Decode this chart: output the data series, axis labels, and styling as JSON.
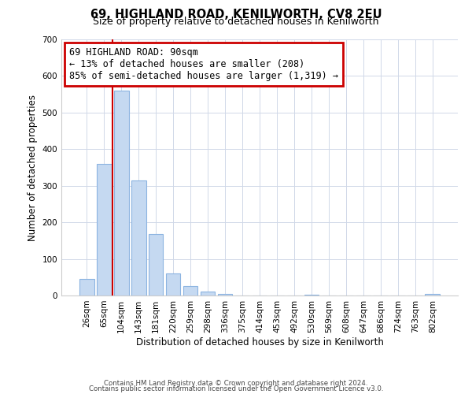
{
  "title1": "69, HIGHLAND ROAD, KENILWORTH, CV8 2EU",
  "title2": "Size of property relative to detached houses in Kenilworth",
  "xlabel": "Distribution of detached houses by size in Kenilworth",
  "ylabel": "Number of detached properties",
  "bar_labels": [
    "26sqm",
    "65sqm",
    "104sqm",
    "143sqm",
    "181sqm",
    "220sqm",
    "259sqm",
    "298sqm",
    "336sqm",
    "375sqm",
    "414sqm",
    "453sqm",
    "492sqm",
    "530sqm",
    "569sqm",
    "608sqm",
    "647sqm",
    "686sqm",
    "724sqm",
    "763sqm",
    "802sqm"
  ],
  "bar_values": [
    45,
    360,
    560,
    315,
    168,
    60,
    25,
    10,
    4,
    0,
    0,
    0,
    0,
    2,
    0,
    0,
    0,
    0,
    0,
    0,
    4
  ],
  "bar_color": "#c5d9f1",
  "bar_edge_color": "#8cb4e1",
  "vline_color": "#cc0000",
  "ylim": [
    0,
    700
  ],
  "yticks": [
    0,
    100,
    200,
    300,
    400,
    500,
    600,
    700
  ],
  "annotation_title": "69 HIGHLAND ROAD: 90sqm",
  "annotation_line1": "← 13% of detached houses are smaller (208)",
  "annotation_line2": "85% of semi-detached houses are larger (1,319) →",
  "annotation_box_color": "#ffffff",
  "annotation_box_edge": "#cc0000",
  "footer1": "Contains HM Land Registry data © Crown copyright and database right 2024.",
  "footer2": "Contains public sector information licensed under the Open Government Licence v3.0.",
  "grid_color": "#d0d8e8",
  "figsize": [
    6.0,
    5.0
  ],
  "dpi": 100
}
